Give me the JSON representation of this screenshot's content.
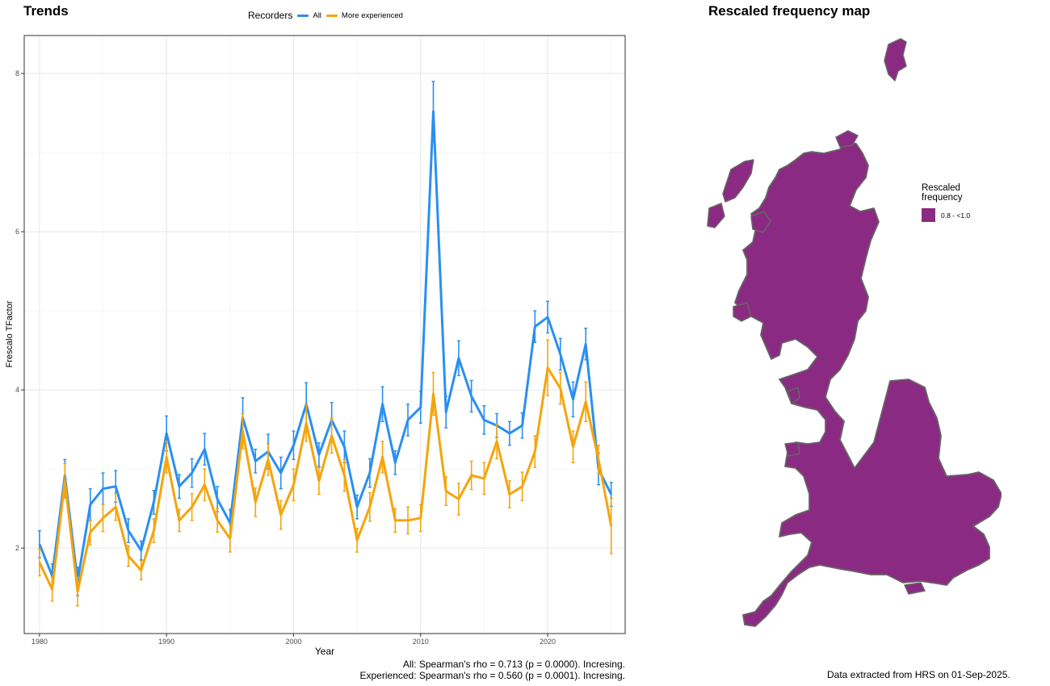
{
  "trends": {
    "title": "Trends",
    "legend_title": "Recorders",
    "series_labels": [
      "All",
      "More experienced"
    ],
    "stats_all": "All: Spearman's rho = 0.713 (p = 0.0000). Incresing.",
    "stats_experienced": "Experienced: Spearman's rho = 0.560 (p = 0.0001). Incresing."
  },
  "map": {
    "title": "Rescaled frequency map",
    "legend_title_line1": "Rescaled",
    "legend_title_line2": "frequency",
    "legend_label": "0.8 - <1.0",
    "legend_color": "#8b2a82",
    "coast_color": "#666666",
    "data_note": "Data extracted from HRS on 01-Sep-2025."
  },
  "chart_data": {
    "type": "line",
    "title": "Trends",
    "xlabel": "Year",
    "ylabel": "Frescalo TFactor",
    "xlim": [
      1978.8,
      2026.1
    ],
    "ylim": [
      0.92,
      8.48
    ],
    "xticks": [
      1980,
      1990,
      2000,
      2010,
      2020
    ],
    "yticks": [
      2,
      4,
      6,
      8
    ],
    "grid": true,
    "legend_position": "top",
    "series": [
      {
        "name": "All",
        "color": "#2b8ff0",
        "x": [
          1980,
          1981,
          1982,
          1983,
          1984,
          1985,
          1986,
          1987,
          1988,
          1989,
          1990,
          1991,
          1992,
          1993,
          1994,
          1995,
          1996,
          1997,
          1998,
          1999,
          2000,
          2001,
          2002,
          2003,
          2004,
          2005,
          2006,
          2007,
          2008,
          2009,
          2010,
          2011,
          2012,
          2013,
          2014,
          2015,
          2016,
          2017,
          2018,
          2019,
          2020,
          2021,
          2022,
          2023,
          2024,
          2025
        ],
        "values": [
          2.05,
          1.65,
          2.92,
          1.58,
          2.55,
          2.75,
          2.78,
          2.22,
          1.97,
          2.58,
          3.45,
          2.78,
          2.95,
          3.25,
          2.62,
          2.32,
          3.65,
          3.1,
          3.22,
          2.95,
          3.3,
          3.82,
          3.18,
          3.62,
          3.28,
          2.52,
          2.95,
          3.82,
          3.08,
          3.62,
          3.78,
          7.52,
          3.72,
          4.4,
          3.92,
          3.62,
          3.55,
          3.45,
          3.55,
          4.8,
          4.92,
          4.45,
          3.88,
          4.58,
          3.0,
          2.68
        ],
        "error": [
          0.17,
          0.15,
          0.2,
          0.18,
          0.2,
          0.2,
          0.2,
          0.15,
          0.12,
          0.15,
          0.22,
          0.15,
          0.18,
          0.2,
          0.16,
          0.17,
          0.25,
          0.15,
          0.22,
          0.2,
          0.18,
          0.27,
          0.15,
          0.22,
          0.2,
          0.15,
          0.18,
          0.22,
          0.15,
          0.2,
          0.2,
          0.38,
          0.2,
          0.22,
          0.2,
          0.18,
          0.15,
          0.15,
          0.16,
          0.2,
          0.2,
          0.2,
          0.22,
          0.2,
          0.2,
          0.15
        ]
      },
      {
        "name": "More experienced",
        "color": "#f4a50d",
        "x": [
          1980,
          1981,
          1982,
          1983,
          1984,
          1985,
          1986,
          1987,
          1988,
          1989,
          1990,
          1991,
          1992,
          1993,
          1994,
          1995,
          1996,
          1997,
          1998,
          1999,
          2000,
          2001,
          2002,
          2003,
          2004,
          2005,
          2006,
          2007,
          2008,
          2009,
          2010,
          2011,
          2012,
          2013,
          2014,
          2015,
          2016,
          2017,
          2018,
          2019,
          2020,
          2021,
          2022,
          2023,
          2024,
          2025
        ],
        "values": [
          1.82,
          1.48,
          2.85,
          1.45,
          2.2,
          2.38,
          2.52,
          1.9,
          1.72,
          2.22,
          3.15,
          2.35,
          2.52,
          2.8,
          2.35,
          2.12,
          3.48,
          2.58,
          3.12,
          2.42,
          2.8,
          3.58,
          2.85,
          3.42,
          2.92,
          2.1,
          2.52,
          3.15,
          2.35,
          2.35,
          2.38,
          3.95,
          2.72,
          2.62,
          2.92,
          2.88,
          3.35,
          2.68,
          2.78,
          3.22,
          4.28,
          4.02,
          3.28,
          3.85,
          3.12,
          2.28
        ],
        "error": [
          0.17,
          0.15,
          0.22,
          0.18,
          0.16,
          0.17,
          0.17,
          0.13,
          0.12,
          0.15,
          0.2,
          0.14,
          0.17,
          0.2,
          0.15,
          0.17,
          0.22,
          0.18,
          0.2,
          0.18,
          0.2,
          0.23,
          0.17,
          0.22,
          0.2,
          0.15,
          0.18,
          0.2,
          0.15,
          0.17,
          0.17,
          0.27,
          0.18,
          0.2,
          0.18,
          0.2,
          0.22,
          0.17,
          0.18,
          0.2,
          0.35,
          0.2,
          0.2,
          0.25,
          0.18,
          0.35
        ]
      }
    ]
  }
}
